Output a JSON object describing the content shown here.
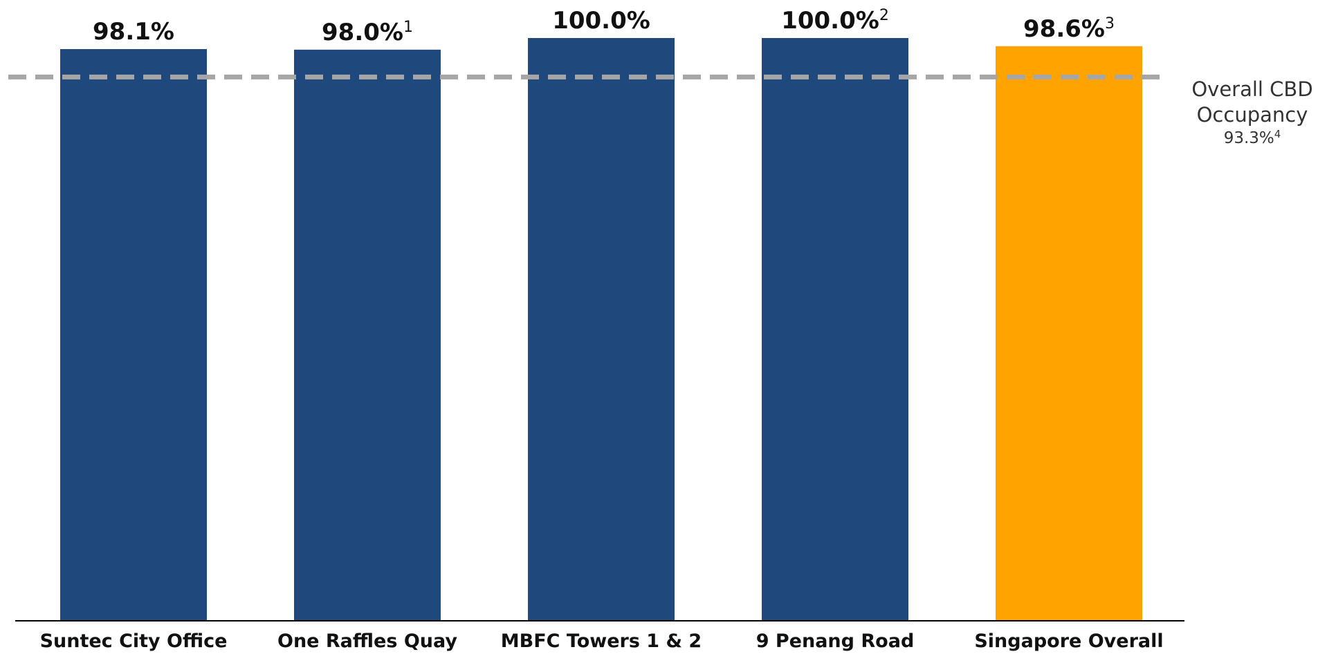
{
  "chart_data": {
    "type": "bar",
    "categories": [
      "Suntec City Office",
      "One Raffles Quay",
      "MBFC Towers 1 & 2",
      "9 Penang Road",
      "Singapore Overall"
    ],
    "values": [
      98.1,
      98.0,
      100.0,
      100.0,
      98.6
    ],
    "value_labels": [
      "98.1%",
      "98.0%",
      "100.0%",
      "100.0%",
      "98.6%"
    ],
    "value_label_footnotes": [
      "",
      "1",
      "",
      "2",
      "3"
    ],
    "bar_colors": [
      "#1f497d",
      "#1f497d",
      "#1f497d",
      "#1f497d",
      "#ffa300"
    ],
    "reference_line": {
      "value": 93.3,
      "label_lines": [
        "Overall CBD",
        "Occupancy"
      ],
      "value_label": "93.3%",
      "value_footnote": "4",
      "color": "#a6a6a6",
      "style": "dashed"
    },
    "title": "",
    "xlabel": "",
    "ylabel": "",
    "ylim": [
      0,
      100
    ],
    "grid": false,
    "legend": "none"
  }
}
